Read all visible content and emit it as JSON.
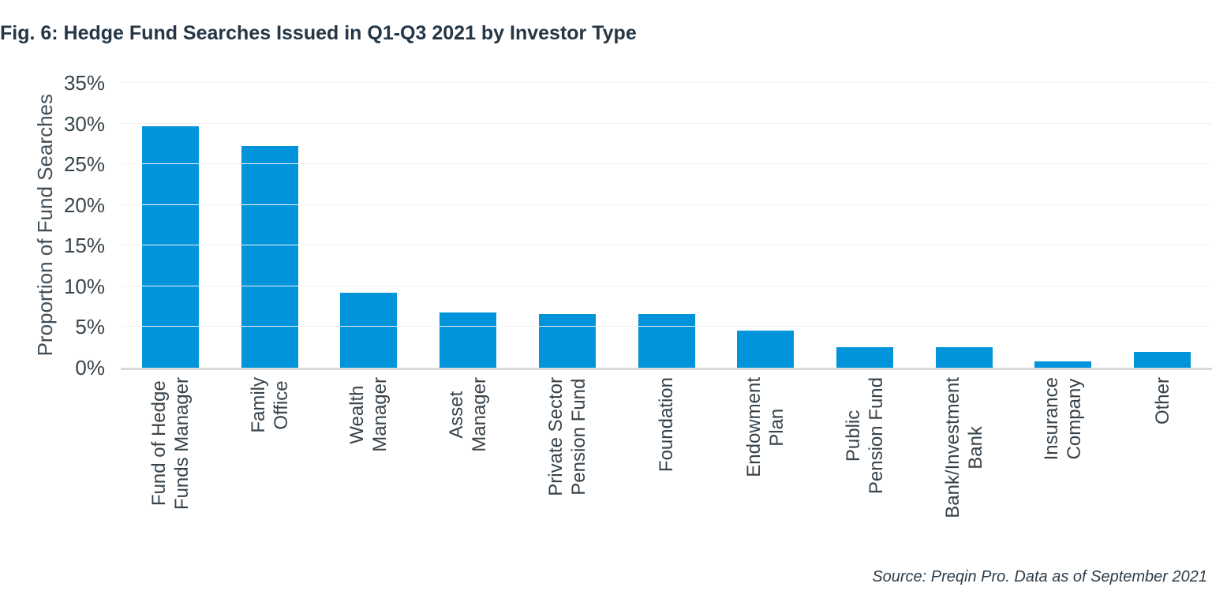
{
  "figure": {
    "title": "Fig. 6: Hedge Fund Searches Issued in Q1-Q3 2021 by Investor Type",
    "source_note": "Source: Preqin Pro. Data as of September 2021"
  },
  "chart_data": {
    "type": "bar",
    "title": "Fig. 6: Hedge Fund Searches Issued in Q1-Q3 2021 by Investor Type",
    "categories": [
      "Fund of Hedge Funds Manager",
      "Family Office",
      "Wealth Manager",
      "Asset Manager",
      "Private Sector Pension Fund",
      "Foundation",
      "Endowment Plan",
      "Public Pension Fund",
      "Bank/Investment Bank",
      "Insurance Company",
      "Other"
    ],
    "category_label_lines": [
      [
        "Fund of Hedge",
        "Funds Manager"
      ],
      [
        "Family",
        "Office"
      ],
      [
        "Wealth",
        "Manager"
      ],
      [
        "Asset",
        "Manager"
      ],
      [
        "Private Sector",
        "Pension Fund"
      ],
      [
        "Foundation"
      ],
      [
        "Endowment",
        "Plan"
      ],
      [
        "Public",
        "Pension Fund"
      ],
      [
        "Bank/Investment",
        "Bank"
      ],
      [
        "Insurance",
        "Company"
      ],
      [
        "Other"
      ]
    ],
    "values": [
      29.7,
      27.2,
      9.2,
      6.8,
      6.6,
      6.6,
      4.6,
      2.5,
      2.5,
      0.8,
      1.9
    ],
    "xlabel": "",
    "ylabel": "Proportion of Fund Searches",
    "ylim": [
      0,
      35
    ],
    "yticks": [
      0,
      5,
      10,
      15,
      20,
      25,
      30,
      35
    ],
    "ytick_suffix": "%",
    "grid": "horizontal",
    "legend": "none",
    "bar_color": "#0294da",
    "gridline_color": "#f2f2f2",
    "axis_line_color": "#d9d9d9",
    "source": "Source: Preqin Pro. Data as of September 2021"
  }
}
